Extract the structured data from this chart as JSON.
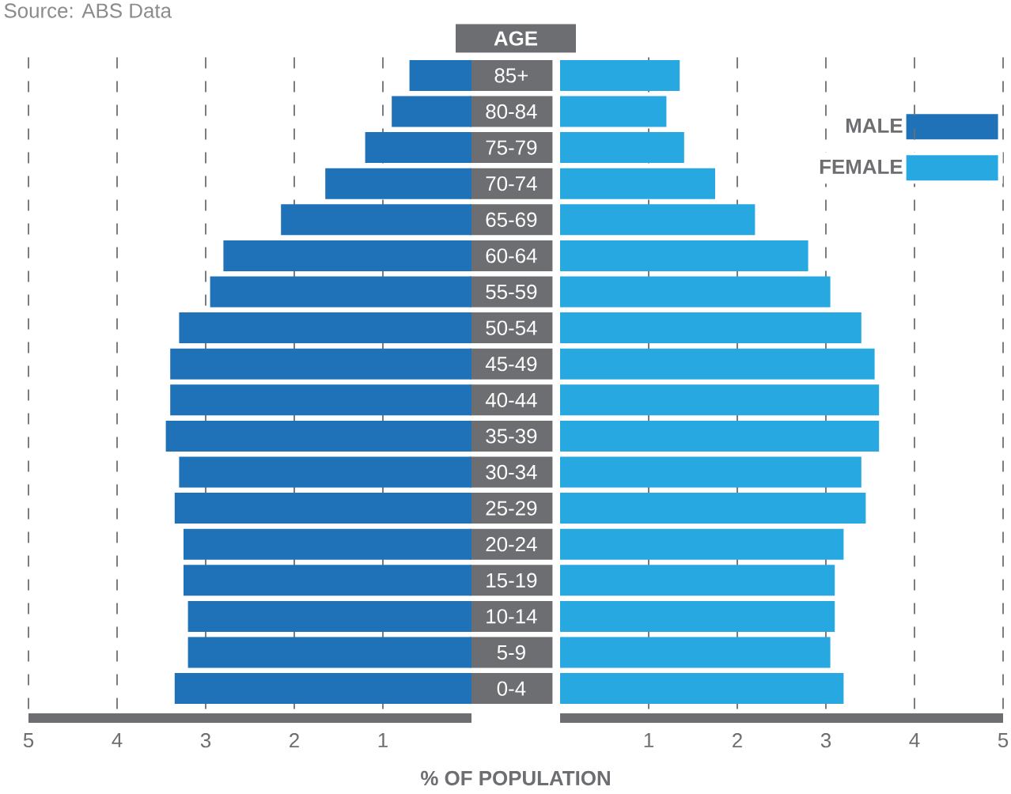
{
  "chart_data": [
    {
      "type": "bar",
      "orientation": "horizontal",
      "ylabel": "AGE",
      "xlabel": "% OF POPULATION",
      "annotations": [
        "Source: ABS Data"
      ],
      "categories": [
        "85+",
        "80-84",
        "75-79",
        "70-74",
        "65-69",
        "60-64",
        "55-59",
        "50-54",
        "45-49",
        "40-44",
        "35-39",
        "30-34",
        "25-29",
        "20-24",
        "15-19",
        "10-14",
        "5-9",
        "0-4"
      ],
      "series": [
        {
          "name": "MALE",
          "color": "#1f72b8",
          "values": [
            0.7,
            0.9,
            1.2,
            1.65,
            2.15,
            2.8,
            2.95,
            3.3,
            3.4,
            3.4,
            3.45,
            3.3,
            3.35,
            3.25,
            3.25,
            3.2,
            3.2,
            3.35
          ]
        }
      ],
      "xlim": [
        5,
        0
      ],
      "xticks": [
        1,
        2,
        3,
        4,
        5
      ],
      "grid": "x",
      "legend": "top right"
    },
    {
      "type": "bar",
      "orientation": "horizontal",
      "categories": [
        null,
        null,
        null,
        null,
        null,
        null,
        null,
        null,
        null,
        null,
        null,
        null,
        null,
        null,
        null,
        null,
        null,
        null
      ],
      "series": [
        {
          "name": "FEMALE",
          "color": "#27a8e0",
          "values": [
            1.35,
            1.2,
            1.4,
            1.75,
            2.2,
            2.8,
            3.05,
            3.4,
            3.55,
            3.6,
            3.6,
            3.4,
            3.45,
            3.2,
            3.1,
            3.1,
            3.05,
            3.2
          ]
        }
      ],
      "xlim": [
        0,
        5
      ],
      "xticks": [
        1,
        2,
        3,
        4,
        5
      ],
      "grid": "x",
      "legend": "top right",
      "tick_labels": "x"
    }
  ]
}
